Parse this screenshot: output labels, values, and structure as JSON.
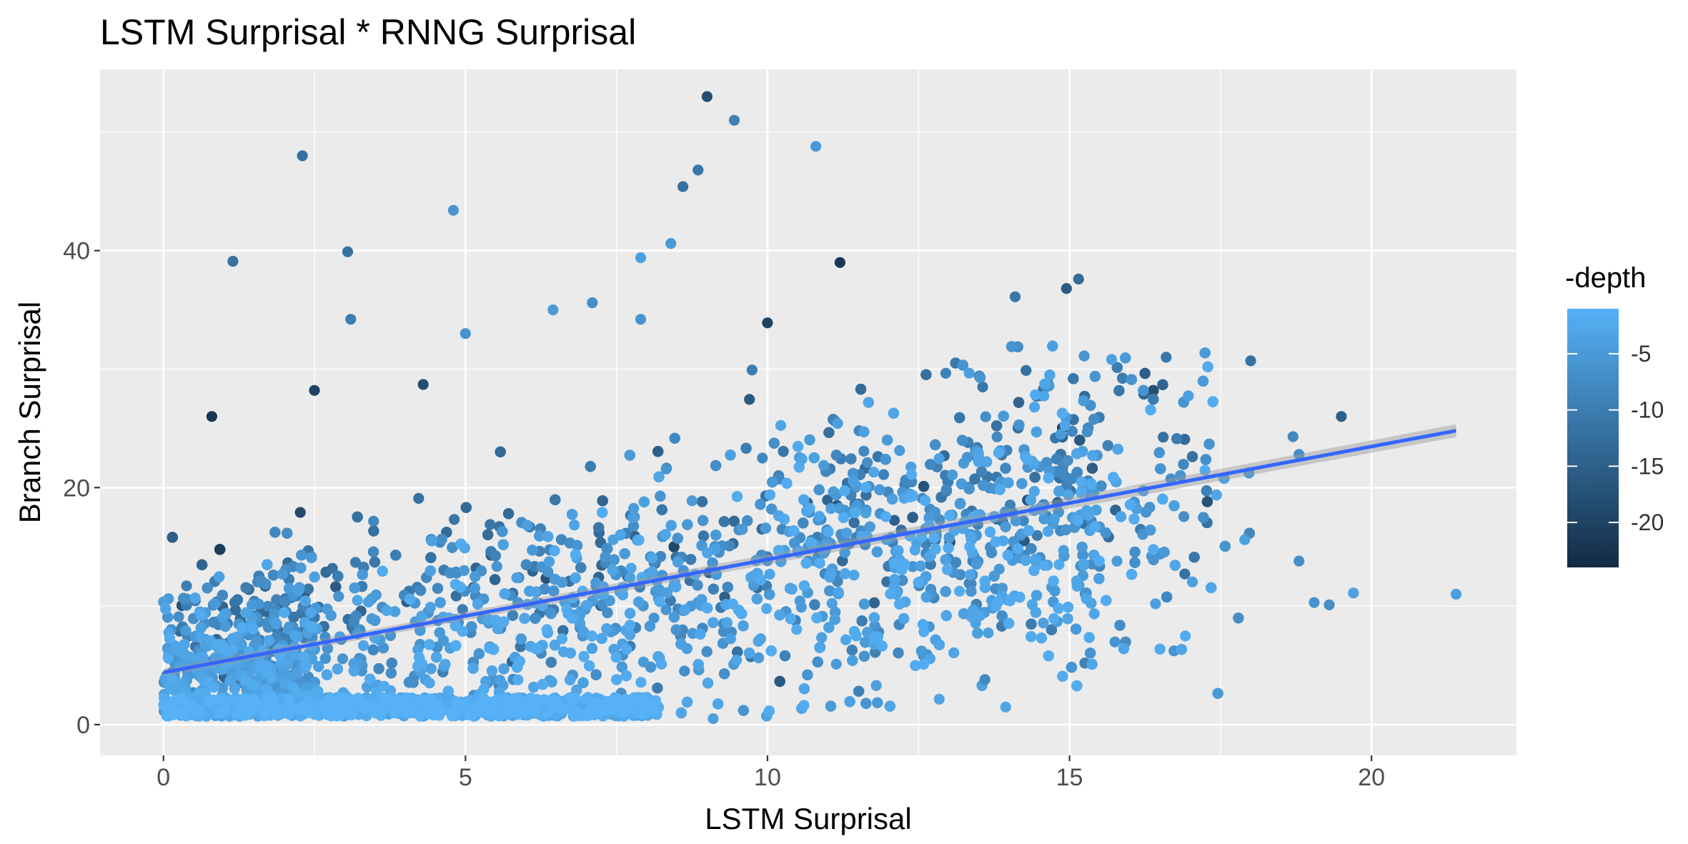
{
  "chart_data": {
    "type": "scatter",
    "title": "LSTM Surprisal * RNNG Surprisal",
    "xlabel": "LSTM Surprisal",
    "ylabel": "Branch Surprisal",
    "xlim": [
      -1.05,
      22.4
    ],
    "ylim": [
      -2.6,
      55.3
    ],
    "x_ticks": [
      0,
      5,
      10,
      15,
      20
    ],
    "x_tick_labels": [
      "0",
      "5",
      "10",
      "15",
      "20"
    ],
    "y_ticks": [
      0,
      20,
      40
    ],
    "y_tick_labels": [
      "0",
      "20",
      "40"
    ],
    "grid": true,
    "panel_background": "#ebebeb",
    "grid_color": "#ffffff",
    "legend": {
      "title": "-depth",
      "placement": "right",
      "range": [
        -24,
        -1
      ],
      "ticks": [
        -5,
        -10,
        -15,
        -20
      ],
      "tick_labels": [
        "-5",
        "-10",
        "-15",
        "-20"
      ],
      "color_low": "#132b43",
      "color_high": "#56b1f7"
    },
    "trend_line": {
      "type": "linear",
      "color": "#3366ff",
      "x": [
        0,
        21.4
      ],
      "y": [
        4.4,
        24.8
      ]
    },
    "outliers": [
      {
        "x": 9.0,
        "y": 53.0,
        "depth": -18
      },
      {
        "x": 9.45,
        "y": 51.0,
        "depth": -9
      },
      {
        "x": 2.3,
        "y": 48.0,
        "depth": -12
      },
      {
        "x": 10.8,
        "y": 48.8,
        "depth": -5
      },
      {
        "x": 8.85,
        "y": 46.8,
        "depth": -11
      },
      {
        "x": 8.6,
        "y": 45.4,
        "depth": -12
      },
      {
        "x": 4.8,
        "y": 43.4,
        "depth": -6
      },
      {
        "x": 8.4,
        "y": 40.6,
        "depth": -5
      },
      {
        "x": 1.15,
        "y": 39.1,
        "depth": -12
      },
      {
        "x": 3.05,
        "y": 39.9,
        "depth": -12
      },
      {
        "x": 7.9,
        "y": 39.4,
        "depth": -4
      },
      {
        "x": 11.2,
        "y": 39.0,
        "depth": -22
      },
      {
        "x": 15.15,
        "y": 37.6,
        "depth": -13
      },
      {
        "x": 14.95,
        "y": 36.8,
        "depth": -16
      },
      {
        "x": 14.1,
        "y": 36.1,
        "depth": -11
      },
      {
        "x": 7.1,
        "y": 35.6,
        "depth": -7
      },
      {
        "x": 6.45,
        "y": 35.0,
        "depth": -5
      },
      {
        "x": 7.9,
        "y": 34.2,
        "depth": -6
      },
      {
        "x": 10.0,
        "y": 33.9,
        "depth": -20
      },
      {
        "x": 3.1,
        "y": 34.2,
        "depth": -10
      },
      {
        "x": 5.0,
        "y": 33.0,
        "depth": -6
      },
      {
        "x": 18.0,
        "y": 30.7,
        "depth": -12
      },
      {
        "x": 16.6,
        "y": 31.0,
        "depth": -11
      },
      {
        "x": 19.5,
        "y": 26.0,
        "depth": -15
      },
      {
        "x": 18.7,
        "y": 24.3,
        "depth": -8
      },
      {
        "x": 18.8,
        "y": 22.8,
        "depth": -7
      },
      {
        "x": 17.9,
        "y": 15.6,
        "depth": -4
      },
      {
        "x": 18.8,
        "y": 13.8,
        "depth": -7
      },
      {
        "x": 19.7,
        "y": 11.1,
        "depth": -4
      },
      {
        "x": 21.4,
        "y": 11.0,
        "depth": -4
      },
      {
        "x": 19.05,
        "y": 10.3,
        "depth": -6
      },
      {
        "x": 19.3,
        "y": 10.1,
        "depth": -7
      },
      {
        "x": 0.8,
        "y": 26.0,
        "depth": -22
      },
      {
        "x": 2.5,
        "y": 28.2,
        "depth": -20
      },
      {
        "x": 4.3,
        "y": 28.7,
        "depth": -18
      },
      {
        "x": 9.1,
        "y": 0.5,
        "depth": -4
      },
      {
        "x": 11.8,
        "y": 3.3,
        "depth": -4
      },
      {
        "x": 13.6,
        "y": 3.8,
        "depth": -8
      }
    ]
  }
}
